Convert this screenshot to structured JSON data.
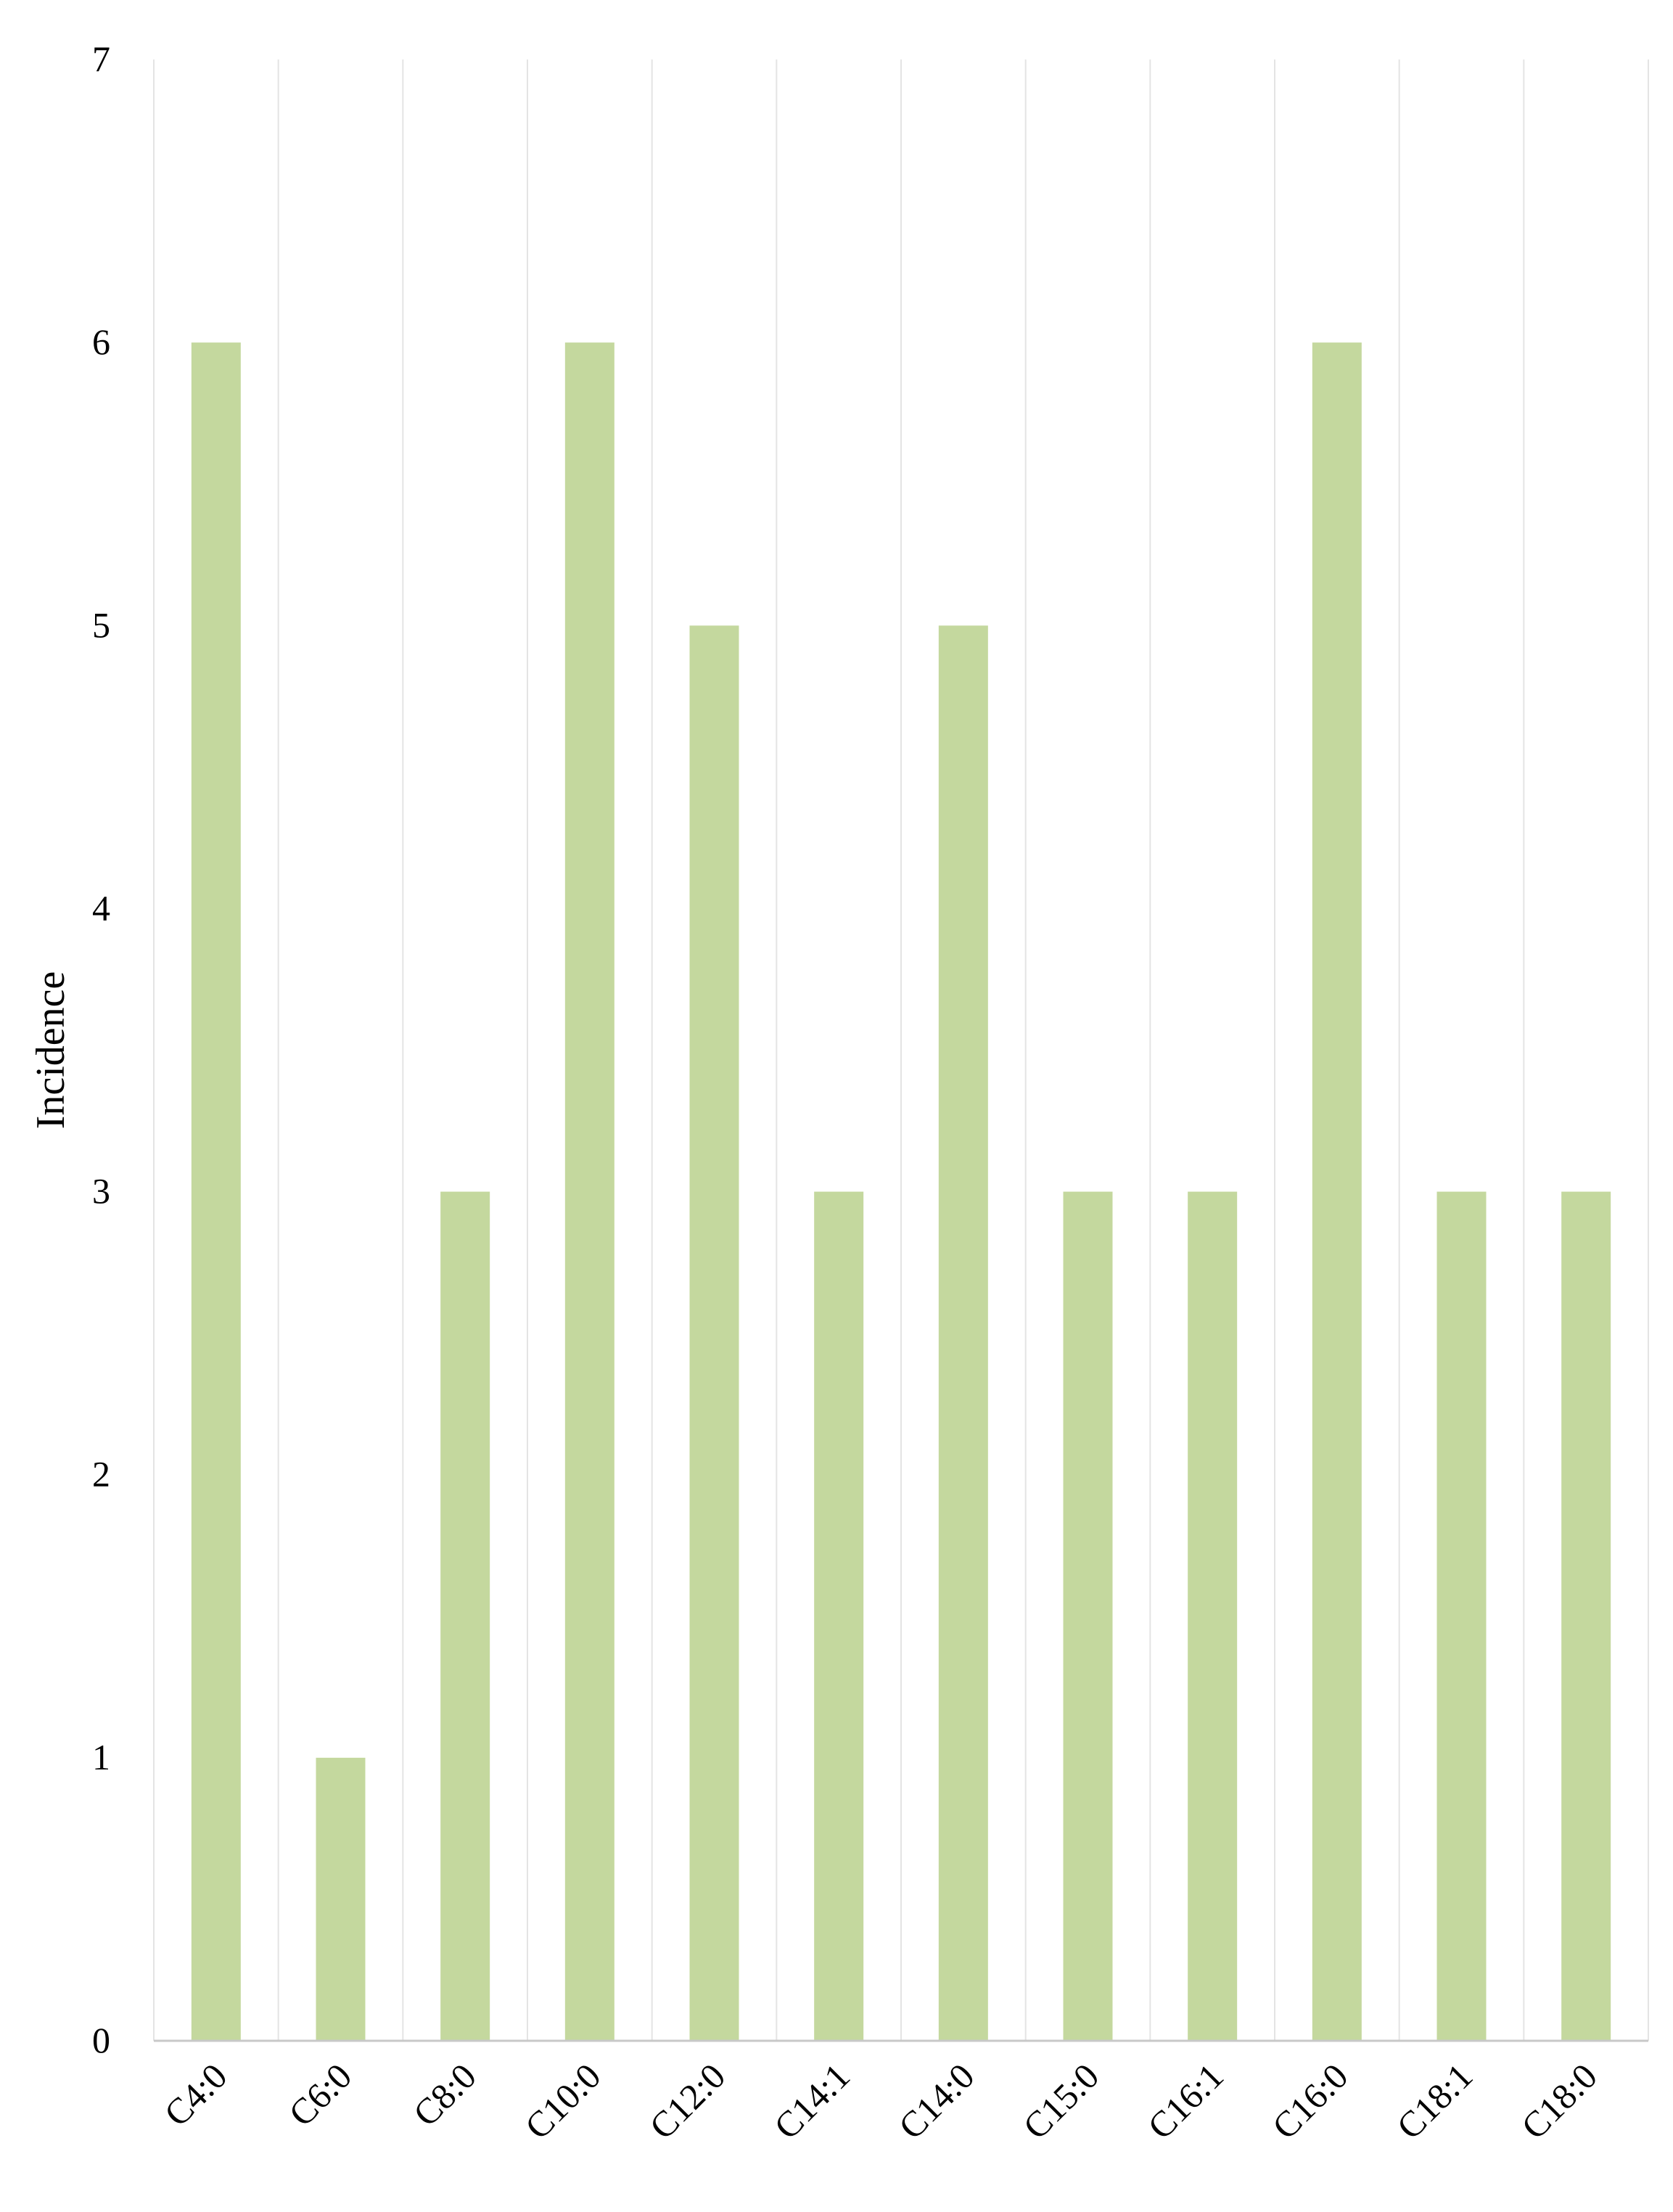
{
  "chart_data": {
    "type": "bar",
    "title": "",
    "xlabel": "",
    "ylabel": "Incidence",
    "categories": [
      "C4:0",
      "C6:0",
      "C8:0",
      "C10:0",
      "C12:0",
      "C14:1",
      "C14:0",
      "C15:0",
      "C16:1",
      "C16:0",
      "C18:1",
      "C18:0"
    ],
    "values": [
      6,
      1,
      3,
      6,
      5,
      3,
      5,
      3,
      3,
      6,
      3,
      3
    ],
    "ylim": [
      0,
      7
    ],
    "yticks": [
      0,
      1,
      2,
      3,
      4,
      5,
      6,
      7
    ],
    "grid": "vertical",
    "legend": "none",
    "colors": {
      "bar": "#c4d89e",
      "grid": "#e4e4e4",
      "axis": "#c8c8c8"
    }
  }
}
